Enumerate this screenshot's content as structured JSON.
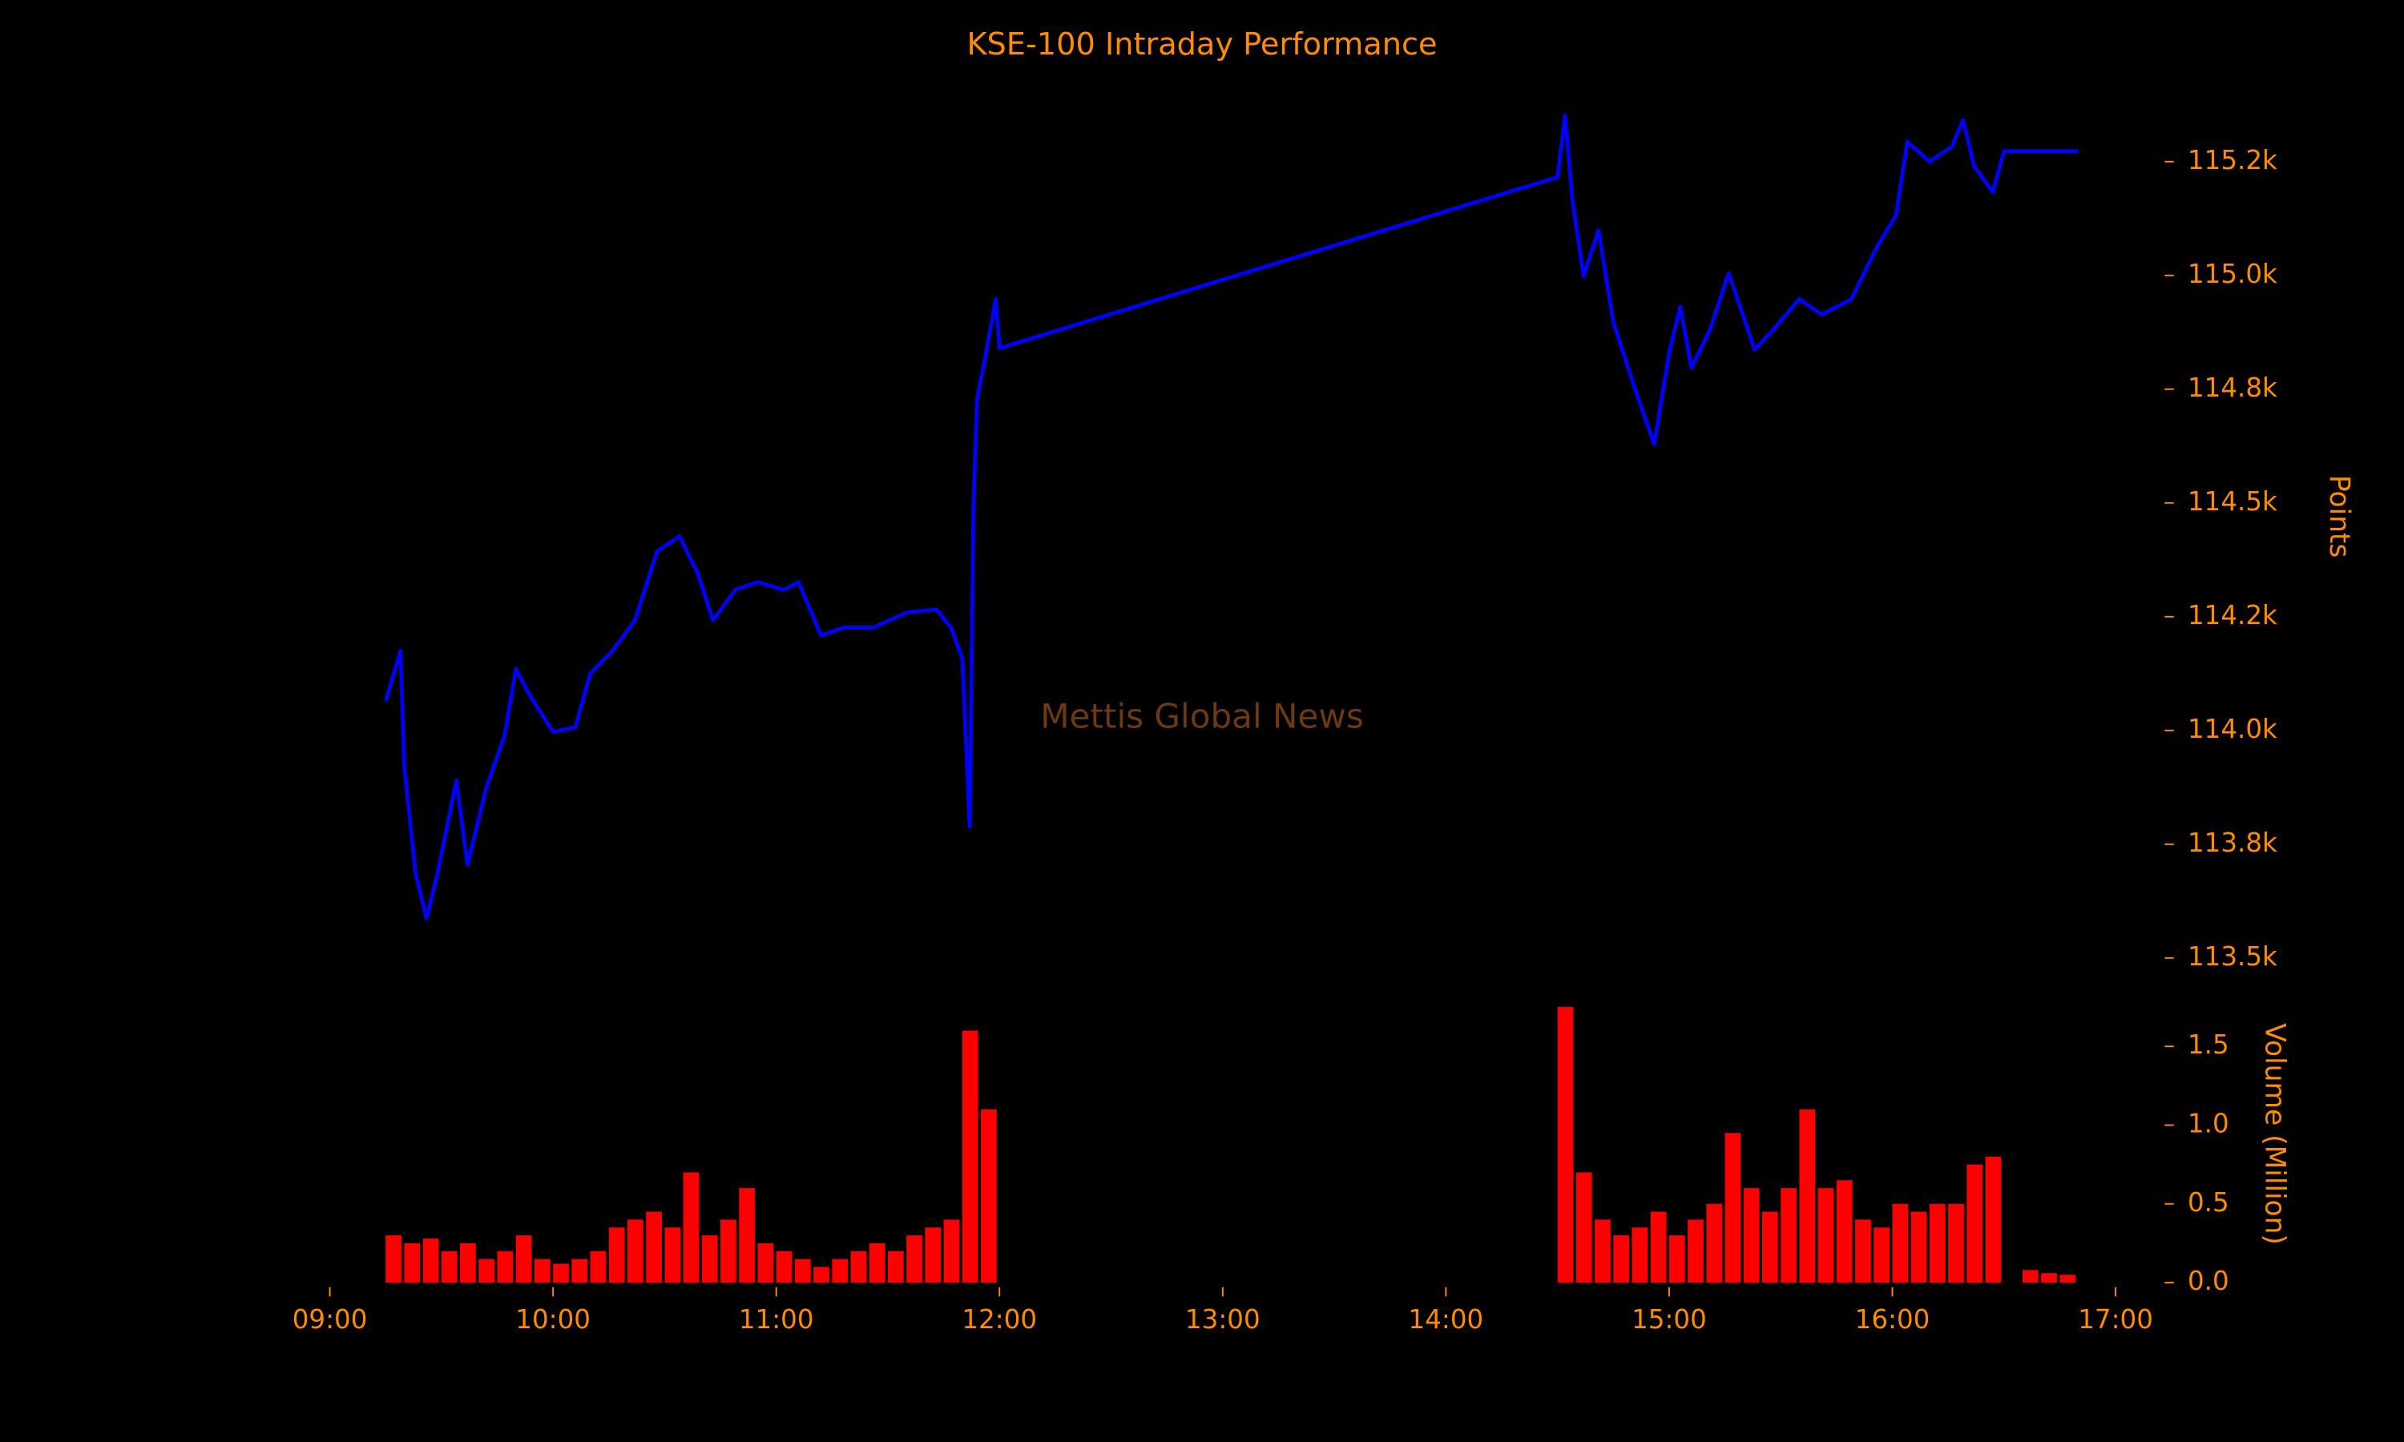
{
  "chart_data": [
    {
      "type": "line",
      "title": "KSE-100 Intraday Performance",
      "ylabel": "Points",
      "annotation": "Mettis Global News",
      "x": [
        "09:15",
        "09:19",
        "09:20",
        "09:23",
        "09:26",
        "09:29",
        "09:34",
        "09:37",
        "09:42",
        "09:47",
        "09:50",
        "09:54",
        "10:00",
        "10:06",
        "10:10",
        "10:16",
        "10:22",
        "10:28",
        "10:34",
        "10:39",
        "10:43",
        "10:49",
        "10:55",
        "11:02",
        "11:06",
        "11:12",
        "11:18",
        "11:26",
        "11:35",
        "11:43",
        "11:47",
        "11:50",
        "11:52",
        "11:53",
        "11:54",
        "11:56",
        "11:59",
        "12:00",
        "14:30",
        "14:32",
        "14:34",
        "14:37",
        "14:41",
        "14:45",
        "14:51",
        "14:56",
        "15:00",
        "15:03",
        "15:06",
        "15:11",
        "15:16",
        "15:23",
        "15:28",
        "15:35",
        "15:41",
        "15:49",
        "15:56",
        "16:01",
        "16:04",
        "16:10",
        "16:16",
        "16:19",
        "16:22",
        "16:27",
        "16:30",
        "16:50"
      ],
      "values": [
        114064,
        114175,
        113923,
        113688,
        113587,
        113688,
        113890,
        113705,
        113873,
        113990,
        114135,
        114074,
        113997,
        114007,
        114125,
        114175,
        114242,
        114394,
        114427,
        114343,
        114242,
        114309,
        114326,
        114309,
        114326,
        114209,
        114226,
        114226,
        114259,
        114266,
        114226,
        114158,
        113789,
        114494,
        114729,
        114813,
        114948,
        114840,
        115216,
        115351,
        115166,
        114998,
        115099,
        114897,
        114746,
        114629,
        114830,
        114931,
        114797,
        114881,
        115005,
        114837,
        114881,
        114948,
        114914,
        114948,
        115065,
        115132,
        115294,
        115250,
        115283,
        115341,
        115240,
        115183,
        115273,
        115273
      ],
      "color": "#0000ff",
      "xlim": [
        "09:00",
        "17:00"
      ],
      "ylim": [
        113450,
        115420
      ],
      "yticks": [
        {
          "value": 113500,
          "label": "113.5k"
        },
        {
          "value": 113750,
          "label": "113.8k"
        },
        {
          "value": 114000,
          "label": "114.0k"
        },
        {
          "value": 114250,
          "label": "114.2k"
        },
        {
          "value": 114500,
          "label": "114.5k"
        },
        {
          "value": 114750,
          "label": "114.8k"
        },
        {
          "value": 115000,
          "label": "115.0k"
        },
        {
          "value": 115250,
          "label": "115.2k"
        }
      ]
    },
    {
      "type": "bar",
      "ylabel": "Volume (Million)",
      "x": [
        "09:15",
        "09:20",
        "09:25",
        "09:30",
        "09:35",
        "09:40",
        "09:45",
        "09:50",
        "09:55",
        "10:00",
        "10:05",
        "10:10",
        "10:15",
        "10:20",
        "10:25",
        "10:30",
        "10:35",
        "10:40",
        "10:45",
        "10:50",
        "10:55",
        "11:00",
        "11:05",
        "11:10",
        "11:15",
        "11:20",
        "11:25",
        "11:30",
        "11:35",
        "11:40",
        "11:45",
        "11:50",
        "11:55",
        "14:30",
        "14:35",
        "14:40",
        "14:45",
        "14:50",
        "14:55",
        "15:00",
        "15:05",
        "15:10",
        "15:15",
        "15:20",
        "15:25",
        "15:30",
        "15:35",
        "15:40",
        "15:45",
        "15:50",
        "15:55",
        "16:00",
        "16:05",
        "16:10",
        "16:15",
        "16:20",
        "16:25",
        "16:35",
        "16:40",
        "16:45"
      ],
      "values": [
        0.3,
        0.25,
        0.28,
        0.2,
        0.25,
        0.15,
        0.2,
        0.3,
        0.15,
        0.12,
        0.15,
        0.2,
        0.35,
        0.4,
        0.45,
        0.35,
        0.7,
        0.3,
        0.4,
        0.6,
        0.25,
        0.2,
        0.15,
        0.1,
        0.15,
        0.2,
        0.25,
        0.2,
        0.3,
        0.35,
        0.4,
        1.6,
        1.1,
        1.75,
        0.7,
        0.4,
        0.3,
        0.35,
        0.45,
        0.3,
        0.4,
        0.5,
        0.95,
        0.6,
        0.45,
        0.6,
        1.1,
        0.6,
        0.65,
        0.4,
        0.35,
        0.5,
        0.45,
        0.5,
        0.5,
        0.75,
        0.8,
        0.08,
        0.06,
        0.05
      ],
      "color": "#ff0000",
      "xlim": [
        "09:00",
        "17:00"
      ],
      "xticks": [
        "09:00",
        "10:00",
        "11:00",
        "12:00",
        "13:00",
        "14:00",
        "15:00",
        "16:00",
        "17:00"
      ],
      "ylim": [
        0,
        1.8
      ],
      "yticks": [
        {
          "value": 0,
          "label": "0.0"
        },
        {
          "value": 0.5,
          "label": "0.5"
        },
        {
          "value": 1,
          "label": "1.0"
        },
        {
          "value": 1.5,
          "label": "1.5"
        }
      ]
    }
  ]
}
